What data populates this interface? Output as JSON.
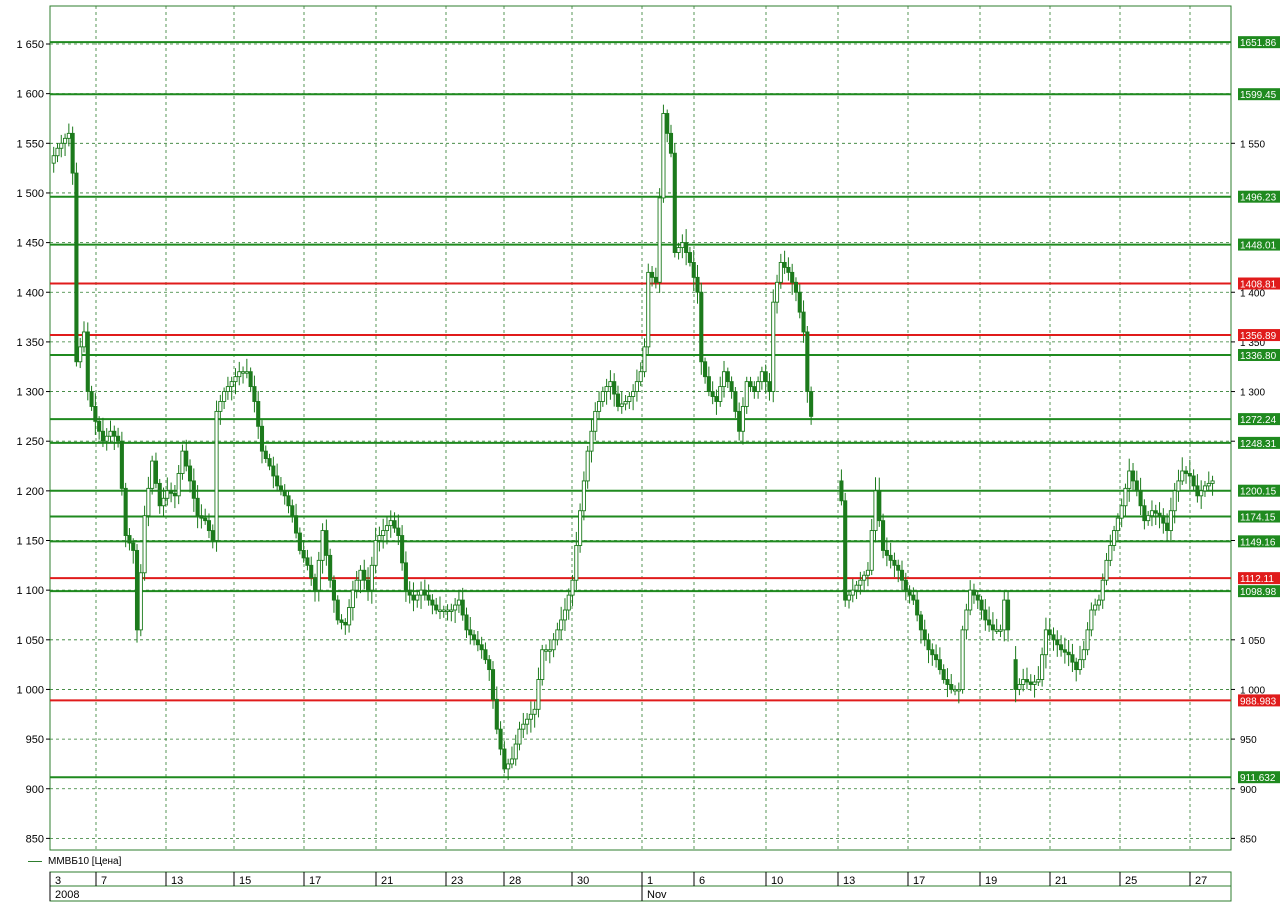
{
  "chart_data": {
    "type": "candlestick",
    "series_name": "ММВБ10 [Цена]",
    "ylim": [
      830,
      1690
    ],
    "y_ticks_left": [
      "1 650",
      "1 600",
      "1 550",
      "1 500",
      "1 450",
      "1 400",
      "1 350",
      "1 300",
      "1 250",
      "1 200",
      "1 150",
      "1 100",
      "1 050",
      "1 000",
      "950",
      "900",
      "850"
    ],
    "y_ticks_right": [
      "1 550",
      "1 400",
      "1 350",
      "1 300",
      "1 250",
      "1 150",
      "1 050",
      "1 000",
      "950",
      "900",
      "850"
    ],
    "x_tick_labels": [
      "3",
      "7",
      "13",
      "15",
      "17",
      "21",
      "23",
      "28",
      "30",
      "1",
      "6",
      "10",
      "13",
      "17",
      "19",
      "21",
      "25",
      "27"
    ],
    "x_month_labels": [
      "2008",
      "Nov"
    ],
    "grid": true,
    "colors": {
      "candle": "#1c7a1c",
      "support": "#1f8a1f",
      "resistance": "#e01b1b",
      "grid": "#2e7d2e"
    },
    "horizontal_levels": [
      {
        "value": 1651.86,
        "label": "1651.86",
        "color": "green"
      },
      {
        "value": 1599.45,
        "label": "1599.45",
        "color": "green"
      },
      {
        "value": 1496.23,
        "label": "1496.23",
        "color": "green"
      },
      {
        "value": 1448.01,
        "label": "1448.01",
        "color": "green"
      },
      {
        "value": 1408.81,
        "label": "1408.81",
        "color": "red"
      },
      {
        "value": 1356.89,
        "label": "1356.89",
        "color": "red"
      },
      {
        "value": 1336.8,
        "label": "1336.80",
        "color": "green"
      },
      {
        "value": 1272.24,
        "label": "1272.24",
        "color": "green"
      },
      {
        "value": 1248.31,
        "label": "1248.31",
        "color": "green"
      },
      {
        "value": 1200.15,
        "label": "1200.15",
        "color": "green"
      },
      {
        "value": 1174.15,
        "label": "1174.15",
        "color": "green"
      },
      {
        "value": 1149.16,
        "label": "1149.16",
        "color": "green"
      },
      {
        "value": 1112.11,
        "label": "1112.11",
        "color": "red"
      },
      {
        "value": 1098.98,
        "label": "1098.98",
        "color": "green"
      },
      {
        "value": 988.98,
        "label": "988.983",
        "color": "red"
      },
      {
        "value": 911.63,
        "label": "911.632",
        "color": "green"
      }
    ],
    "price_path": [
      [
        0,
        1530
      ],
      [
        2,
        1545
      ],
      [
        5,
        1560
      ],
      [
        6,
        1520
      ],
      [
        7,
        1330
      ],
      [
        9,
        1360
      ],
      [
        10,
        1300
      ],
      [
        12,
        1270
      ],
      [
        14,
        1250
      ],
      [
        16,
        1260
      ],
      [
        18,
        1250
      ],
      [
        20,
        1155
      ],
      [
        22,
        1140
      ],
      [
        23,
        1060
      ],
      [
        25,
        1175
      ],
      [
        27,
        1230
      ],
      [
        29,
        1185
      ],
      [
        31,
        1200
      ],
      [
        33,
        1195
      ],
      [
        35,
        1240
      ],
      [
        37,
        1210
      ],
      [
        39,
        1175
      ],
      [
        41,
        1170
      ],
      [
        43,
        1150
      ],
      [
        44,
        1280
      ],
      [
        46,
        1300
      ],
      [
        48,
        1310
      ],
      [
        50,
        1320
      ],
      [
        52,
        1320
      ],
      [
        54,
        1290
      ],
      [
        56,
        1240
      ],
      [
        58,
        1225
      ],
      [
        60,
        1205
      ],
      [
        62,
        1195
      ],
      [
        64,
        1175
      ],
      [
        66,
        1140
      ],
      [
        68,
        1125
      ],
      [
        70,
        1100
      ],
      [
        72,
        1160
      ],
      [
        74,
        1110
      ],
      [
        76,
        1070
      ],
      [
        78,
        1065
      ],
      [
        80,
        1100
      ],
      [
        82,
        1120
      ],
      [
        84,
        1100
      ],
      [
        86,
        1150
      ],
      [
        88,
        1160
      ],
      [
        90,
        1170
      ],
      [
        92,
        1155
      ],
      [
        94,
        1100
      ],
      [
        96,
        1090
      ],
      [
        98,
        1100
      ],
      [
        100,
        1090
      ],
      [
        102,
        1080
      ],
      [
        104,
        1080
      ],
      [
        106,
        1080
      ],
      [
        108,
        1090
      ],
      [
        110,
        1060
      ],
      [
        112,
        1050
      ],
      [
        114,
        1040
      ],
      [
        116,
        1020
      ],
      [
        118,
        960
      ],
      [
        120,
        920
      ],
      [
        122,
        930
      ],
      [
        124,
        960
      ],
      [
        126,
        970
      ],
      [
        128,
        980
      ],
      [
        130,
        1040
      ],
      [
        132,
        1040
      ],
      [
        134,
        1060
      ],
      [
        136,
        1080
      ],
      [
        138,
        1110
      ],
      [
        140,
        1180
      ],
      [
        142,
        1240
      ],
      [
        144,
        1280
      ],
      [
        146,
        1300
      ],
      [
        148,
        1310
      ],
      [
        150,
        1285
      ],
      [
        152,
        1290
      ],
      [
        154,
        1300
      ],
      [
        156,
        1320
      ],
      [
        157,
        1345
      ],
      [
        158,
        1420
      ],
      [
        160,
        1410
      ],
      [
        162,
        1580
      ],
      [
        164,
        1540
      ],
      [
        165,
        1440
      ],
      [
        167,
        1450
      ],
      [
        169,
        1430
      ],
      [
        171,
        1400
      ],
      [
        172,
        1330
      ],
      [
        174,
        1300
      ],
      [
        176,
        1290
      ],
      [
        178,
        1320
      ],
      [
        180,
        1300
      ],
      [
        182,
        1260
      ],
      [
        184,
        1310
      ],
      [
        186,
        1300
      ],
      [
        188,
        1320
      ],
      [
        190,
        1300
      ],
      [
        191,
        1390
      ],
      [
        193,
        1430
      ],
      [
        195,
        1420
      ],
      [
        197,
        1400
      ],
      [
        199,
        1360
      ],
      [
        200,
        1300
      ],
      [
        202,
        1250
      ],
      [
        204,
        1240
      ],
      [
        206,
        1225
      ],
      [
        208,
        1210
      ],
      [
        209,
        1190
      ],
      [
        210,
        1090
      ],
      [
        212,
        1100
      ],
      [
        214,
        1110
      ],
      [
        216,
        1120
      ],
      [
        218,
        1200
      ],
      [
        220,
        1140
      ],
      [
        222,
        1130
      ],
      [
        224,
        1120
      ],
      [
        226,
        1100
      ],
      [
        228,
        1090
      ],
      [
        230,
        1060
      ],
      [
        232,
        1040
      ],
      [
        234,
        1030
      ],
      [
        236,
        1010
      ],
      [
        238,
        1000
      ],
      [
        240,
        1000
      ],
      [
        241,
        1060
      ],
      [
        243,
        1100
      ],
      [
        245,
        1090
      ],
      [
        247,
        1070
      ],
      [
        249,
        1060
      ],
      [
        251,
        1060
      ],
      [
        252,
        1090
      ],
      [
        255,
        1000
      ],
      [
        257,
        1010
      ],
      [
        259,
        1005
      ],
      [
        261,
        1010
      ],
      [
        263,
        1060
      ],
      [
        265,
        1050
      ],
      [
        267,
        1040
      ],
      [
        269,
        1035
      ],
      [
        271,
        1020
      ],
      [
        273,
        1040
      ],
      [
        275,
        1080
      ],
      [
        277,
        1090
      ],
      [
        279,
        1130
      ],
      [
        281,
        1160
      ],
      [
        283,
        1185
      ],
      [
        285,
        1220
      ],
      [
        287,
        1200
      ],
      [
        289,
        1170
      ],
      [
        291,
        1180
      ],
      [
        293,
        1175
      ],
      [
        295,
        1160
      ],
      [
        297,
        1200
      ],
      [
        299,
        1220
      ],
      [
        301,
        1215
      ],
      [
        303,
        1195
      ],
      [
        305,
        1205
      ],
      [
        307,
        1210
      ]
    ]
  }
}
